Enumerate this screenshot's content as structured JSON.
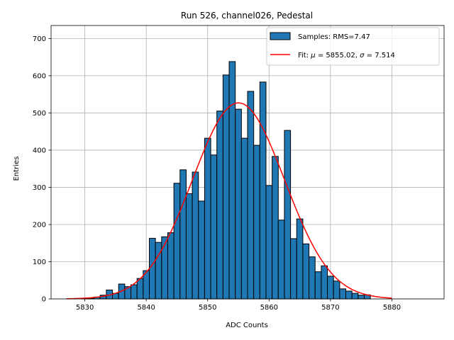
{
  "chart_data": {
    "type": "bar",
    "title": "Run 526, channel026, Pedestal",
    "xlabel": "ADC Counts",
    "ylabel": "Entries",
    "xlim": [
      5824.5,
      5888.5
    ],
    "ylim": [
      0,
      735
    ],
    "xticks": [
      5830,
      5840,
      5850,
      5860,
      5870,
      5880
    ],
    "yticks": [
      0,
      100,
      200,
      300,
      400,
      500,
      600,
      700
    ],
    "grid": true,
    "legend_position": "top-right",
    "bar_color": "#1f77b4",
    "fit_color": "#ff0000",
    "histogram": {
      "name": "Samples: RMS=7.47",
      "bin_width": 1,
      "bin_centers": [
        5830,
        5831,
        5832,
        5833,
        5834,
        5835,
        5836,
        5837,
        5838,
        5839,
        5840,
        5841,
        5842,
        5843,
        5844,
        5845,
        5846,
        5847,
        5848,
        5849,
        5850,
        5851,
        5852,
        5853,
        5854,
        5855,
        5856,
        5857,
        5858,
        5859,
        5860,
        5861,
        5862,
        5863,
        5864,
        5865,
        5866,
        5867,
        5868,
        5869,
        5870,
        5871,
        5872,
        5873,
        5874,
        5875,
        5876
      ],
      "counts": [
        1,
        2,
        5,
        10,
        24,
        15,
        40,
        33,
        38,
        55,
        76,
        163,
        152,
        167,
        178,
        311,
        347,
        283,
        341,
        263,
        432,
        387,
        505,
        602,
        638,
        510,
        432,
        558,
        413,
        583,
        305,
        383,
        212,
        453,
        162,
        215,
        148,
        113,
        73,
        89,
        61,
        48,
        27,
        21,
        15,
        10,
        11
      ]
    },
    "fit": {
      "name": "Fit: μ = 5855.02, σ = 7.514",
      "label_prefix": "Fit: ",
      "mu_symbol": "μ",
      "mu_text": " = 5855.02, ",
      "sigma_symbol": "σ",
      "sigma_text": " = 7.514",
      "mu": 5855.02,
      "sigma": 7.514,
      "amplitude": 527,
      "x_range": [
        5827,
        5880
      ]
    }
  }
}
